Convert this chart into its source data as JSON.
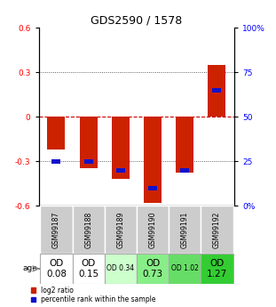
{
  "title": "GDS2590 / 1578",
  "samples": [
    "GSM99187",
    "GSM99188",
    "GSM99189",
    "GSM99190",
    "GSM99191",
    "GSM99192"
  ],
  "log2_ratio": [
    -0.22,
    -0.35,
    -0.42,
    -0.58,
    -0.38,
    0.35
  ],
  "percentile_rank_pct": [
    25,
    25,
    20,
    10,
    20,
    65
  ],
  "ylim": [
    -0.6,
    0.6
  ],
  "yticks_left": [
    -0.6,
    -0.3,
    0,
    0.3,
    0.6
  ],
  "yticks_right_pct": [
    0,
    25,
    50,
    75,
    100
  ],
  "bar_color_red": "#cc2200",
  "bar_color_blue": "#1111cc",
  "zero_line_color": "#cc0000",
  "grid_color": "#333333",
  "age_labels": [
    "OD\n0.08",
    "OD\n0.15",
    "OD 0.34",
    "OD\n0.73",
    "OD 1.02",
    "OD\n1.27"
  ],
  "age_bg_colors": [
    "#ffffff",
    "#ffffff",
    "#ccffcc",
    "#88ee88",
    "#66dd66",
    "#33cc33"
  ],
  "age_fontsize_small": [
    false,
    false,
    true,
    false,
    true,
    false
  ],
  "gsm_bg_color": "#cccccc",
  "bar_width": 0.55
}
